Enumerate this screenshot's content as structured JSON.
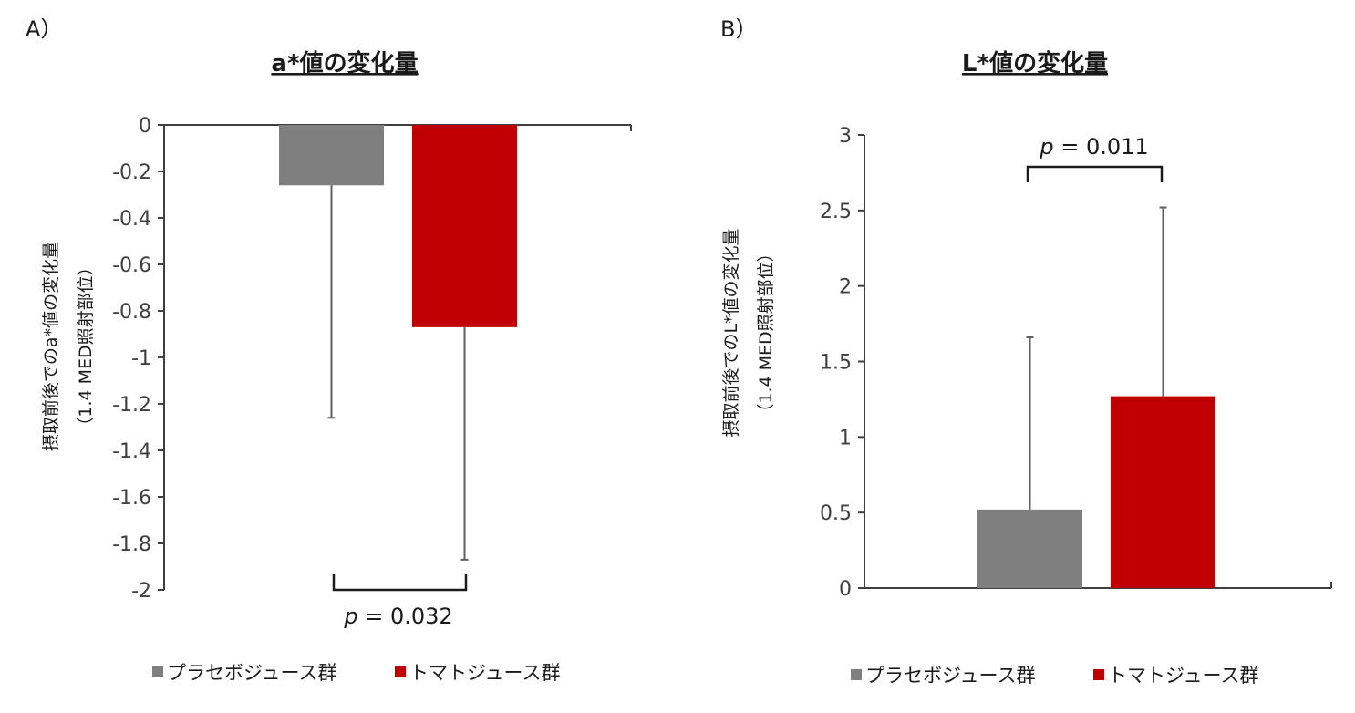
{
  "chart_data": [
    {
      "type": "bar",
      "panel_label": "A）",
      "title": "a*値の変化量",
      "ylabel_line1": "摂取前後でのa*値の変化量",
      "ylabel_line2": "（1.4 MED照射部位）",
      "ylim": [
        -2,
        0
      ],
      "yticks": [
        "0",
        "-0.2",
        "-0.4",
        "-0.6",
        "-0.8",
        "-1",
        "-1.2",
        "-1.4",
        "-1.6",
        "-1.8",
        "-2"
      ],
      "ytick_values": [
        0,
        -0.2,
        -0.4,
        -0.6,
        -0.8,
        -1,
        -1.2,
        -1.4,
        -1.6,
        -1.8,
        -2
      ],
      "series": [
        {
          "name": "プラセボジュース群",
          "value": -0.26,
          "error": 1.0,
          "color": "#7f7f7f"
        },
        {
          "name": "トマトジュース群",
          "value": -0.87,
          "error": 1.0,
          "color": "#c00000"
        }
      ],
      "annotation": {
        "p_label": "p",
        "p_value": " = 0.032"
      },
      "legend_position": "bottom",
      "grid": false
    },
    {
      "type": "bar",
      "panel_label": "B）",
      "title": "L*値の変化量",
      "ylabel_line1": "摂取前後でのL*値の変化量",
      "ylabel_line2": "（1.4 MED照射部位）",
      "ylim": [
        0,
        3
      ],
      "yticks": [
        "0",
        "0.5",
        "1",
        "1.5",
        "2",
        "2.5",
        "3"
      ],
      "ytick_values": [
        0,
        0.5,
        1,
        1.5,
        2,
        2.5,
        3
      ],
      "series": [
        {
          "name": "プラセボジュース群",
          "value": 0.52,
          "error": 1.14,
          "color": "#7f7f7f"
        },
        {
          "name": "トマトジュース群",
          "value": 1.27,
          "error": 1.25,
          "color": "#c00000"
        }
      ],
      "annotation": {
        "p_label": "p",
        "p_value": " = 0.011"
      },
      "legend_position": "bottom",
      "grid": false
    }
  ]
}
